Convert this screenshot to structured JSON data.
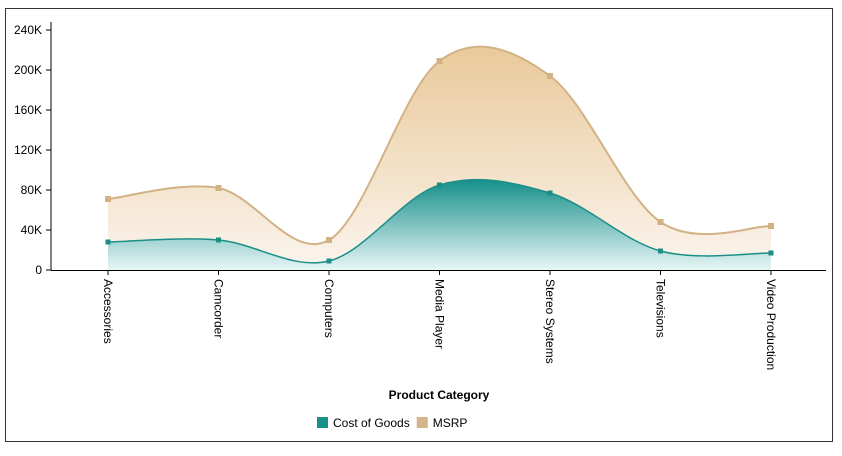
{
  "chart_data": {
    "type": "area",
    "title": "",
    "xlabel": "Product Category",
    "ylabel": "",
    "ylim": [
      0,
      240000
    ],
    "yticks": [
      0,
      40000,
      80000,
      120000,
      160000,
      200000,
      240000
    ],
    "ytick_labels": [
      "0",
      "40K",
      "80K",
      "120K",
      "160K",
      "200K",
      "240K"
    ],
    "categories": [
      "Accessories",
      "Camcorder",
      "Computers",
      "Media Player",
      "Stereo Systems",
      "Televisions",
      "Video Production"
    ],
    "series": [
      {
        "name": "MSRP",
        "color": "#d4b48a",
        "values": [
          71000,
          82000,
          30000,
          209000,
          194000,
          48000,
          44000
        ]
      },
      {
        "name": "Cost of Goods",
        "color": "#1a8f8a",
        "values": [
          28000,
          30000,
          9000,
          85000,
          77000,
          19000,
          17000
        ]
      }
    ],
    "legend": {
      "position": "bottom-center",
      "items": [
        "Cost of Goods",
        "MSRP"
      ]
    },
    "grid": false
  }
}
